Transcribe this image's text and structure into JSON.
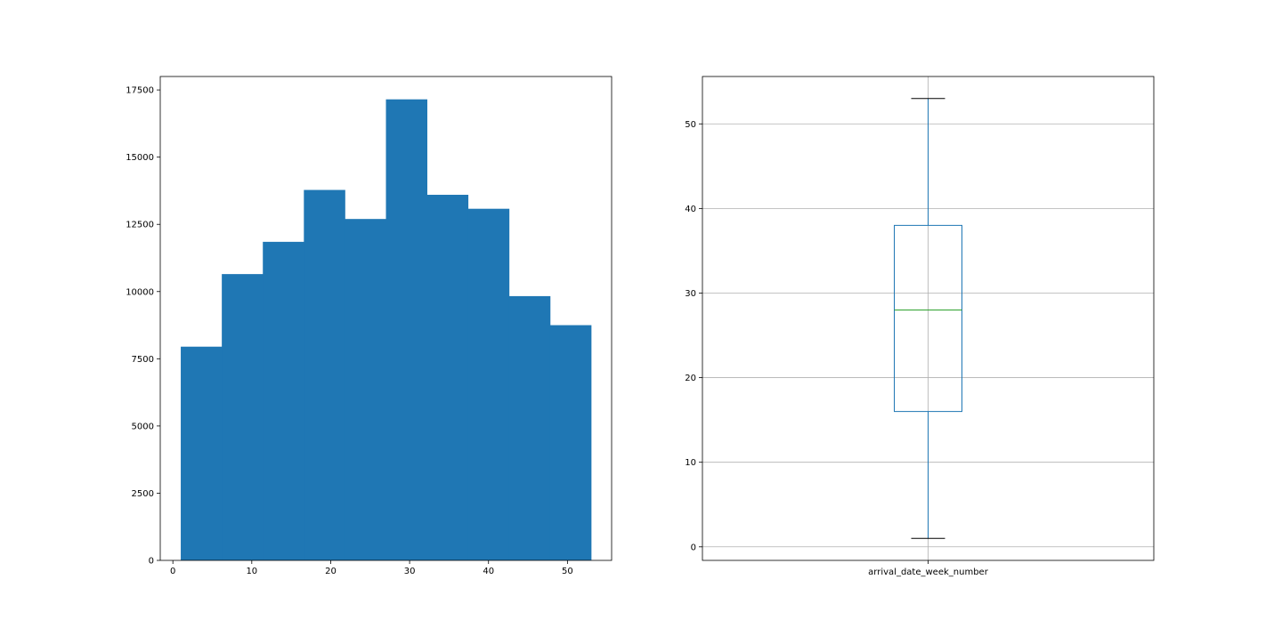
{
  "chart_data": [
    {
      "type": "histogram",
      "title": "",
      "xlabel": "",
      "ylabel": "",
      "bin_edges": [
        1,
        6.2,
        11.4,
        16.6,
        21.8,
        27,
        32.2,
        37.4,
        42.6,
        47.8,
        53
      ],
      "counts": [
        7950,
        10650,
        11850,
        13780,
        12700,
        17150,
        13600,
        13080,
        9830,
        8750
      ],
      "xlim": [
        -1.6,
        55.6
      ],
      "ylim": [
        0,
        18000
      ],
      "xticks": [
        0,
        10,
        20,
        30,
        40,
        50
      ],
      "yticks": [
        0,
        2500,
        5000,
        7500,
        10000,
        12500,
        15000,
        17500
      ],
      "grid": false,
      "colors": {
        "bar": "#1f77b4"
      }
    },
    {
      "type": "box",
      "title": "",
      "xlabel": "",
      "ylabel": "",
      "categories": [
        "arrival_date_week_number"
      ],
      "stats": {
        "whisker_low": 1,
        "q1": 16,
        "median": 28,
        "q3": 38,
        "whisker_high": 53
      },
      "ylim": [
        -1.6,
        55.6
      ],
      "yticks": [
        0,
        10,
        20,
        30,
        40,
        50
      ],
      "grid": true,
      "colors": {
        "box": "#1f77b4",
        "median": "#2ca02c",
        "caps": "#000000",
        "grid": "#b0b0b0"
      }
    }
  ]
}
